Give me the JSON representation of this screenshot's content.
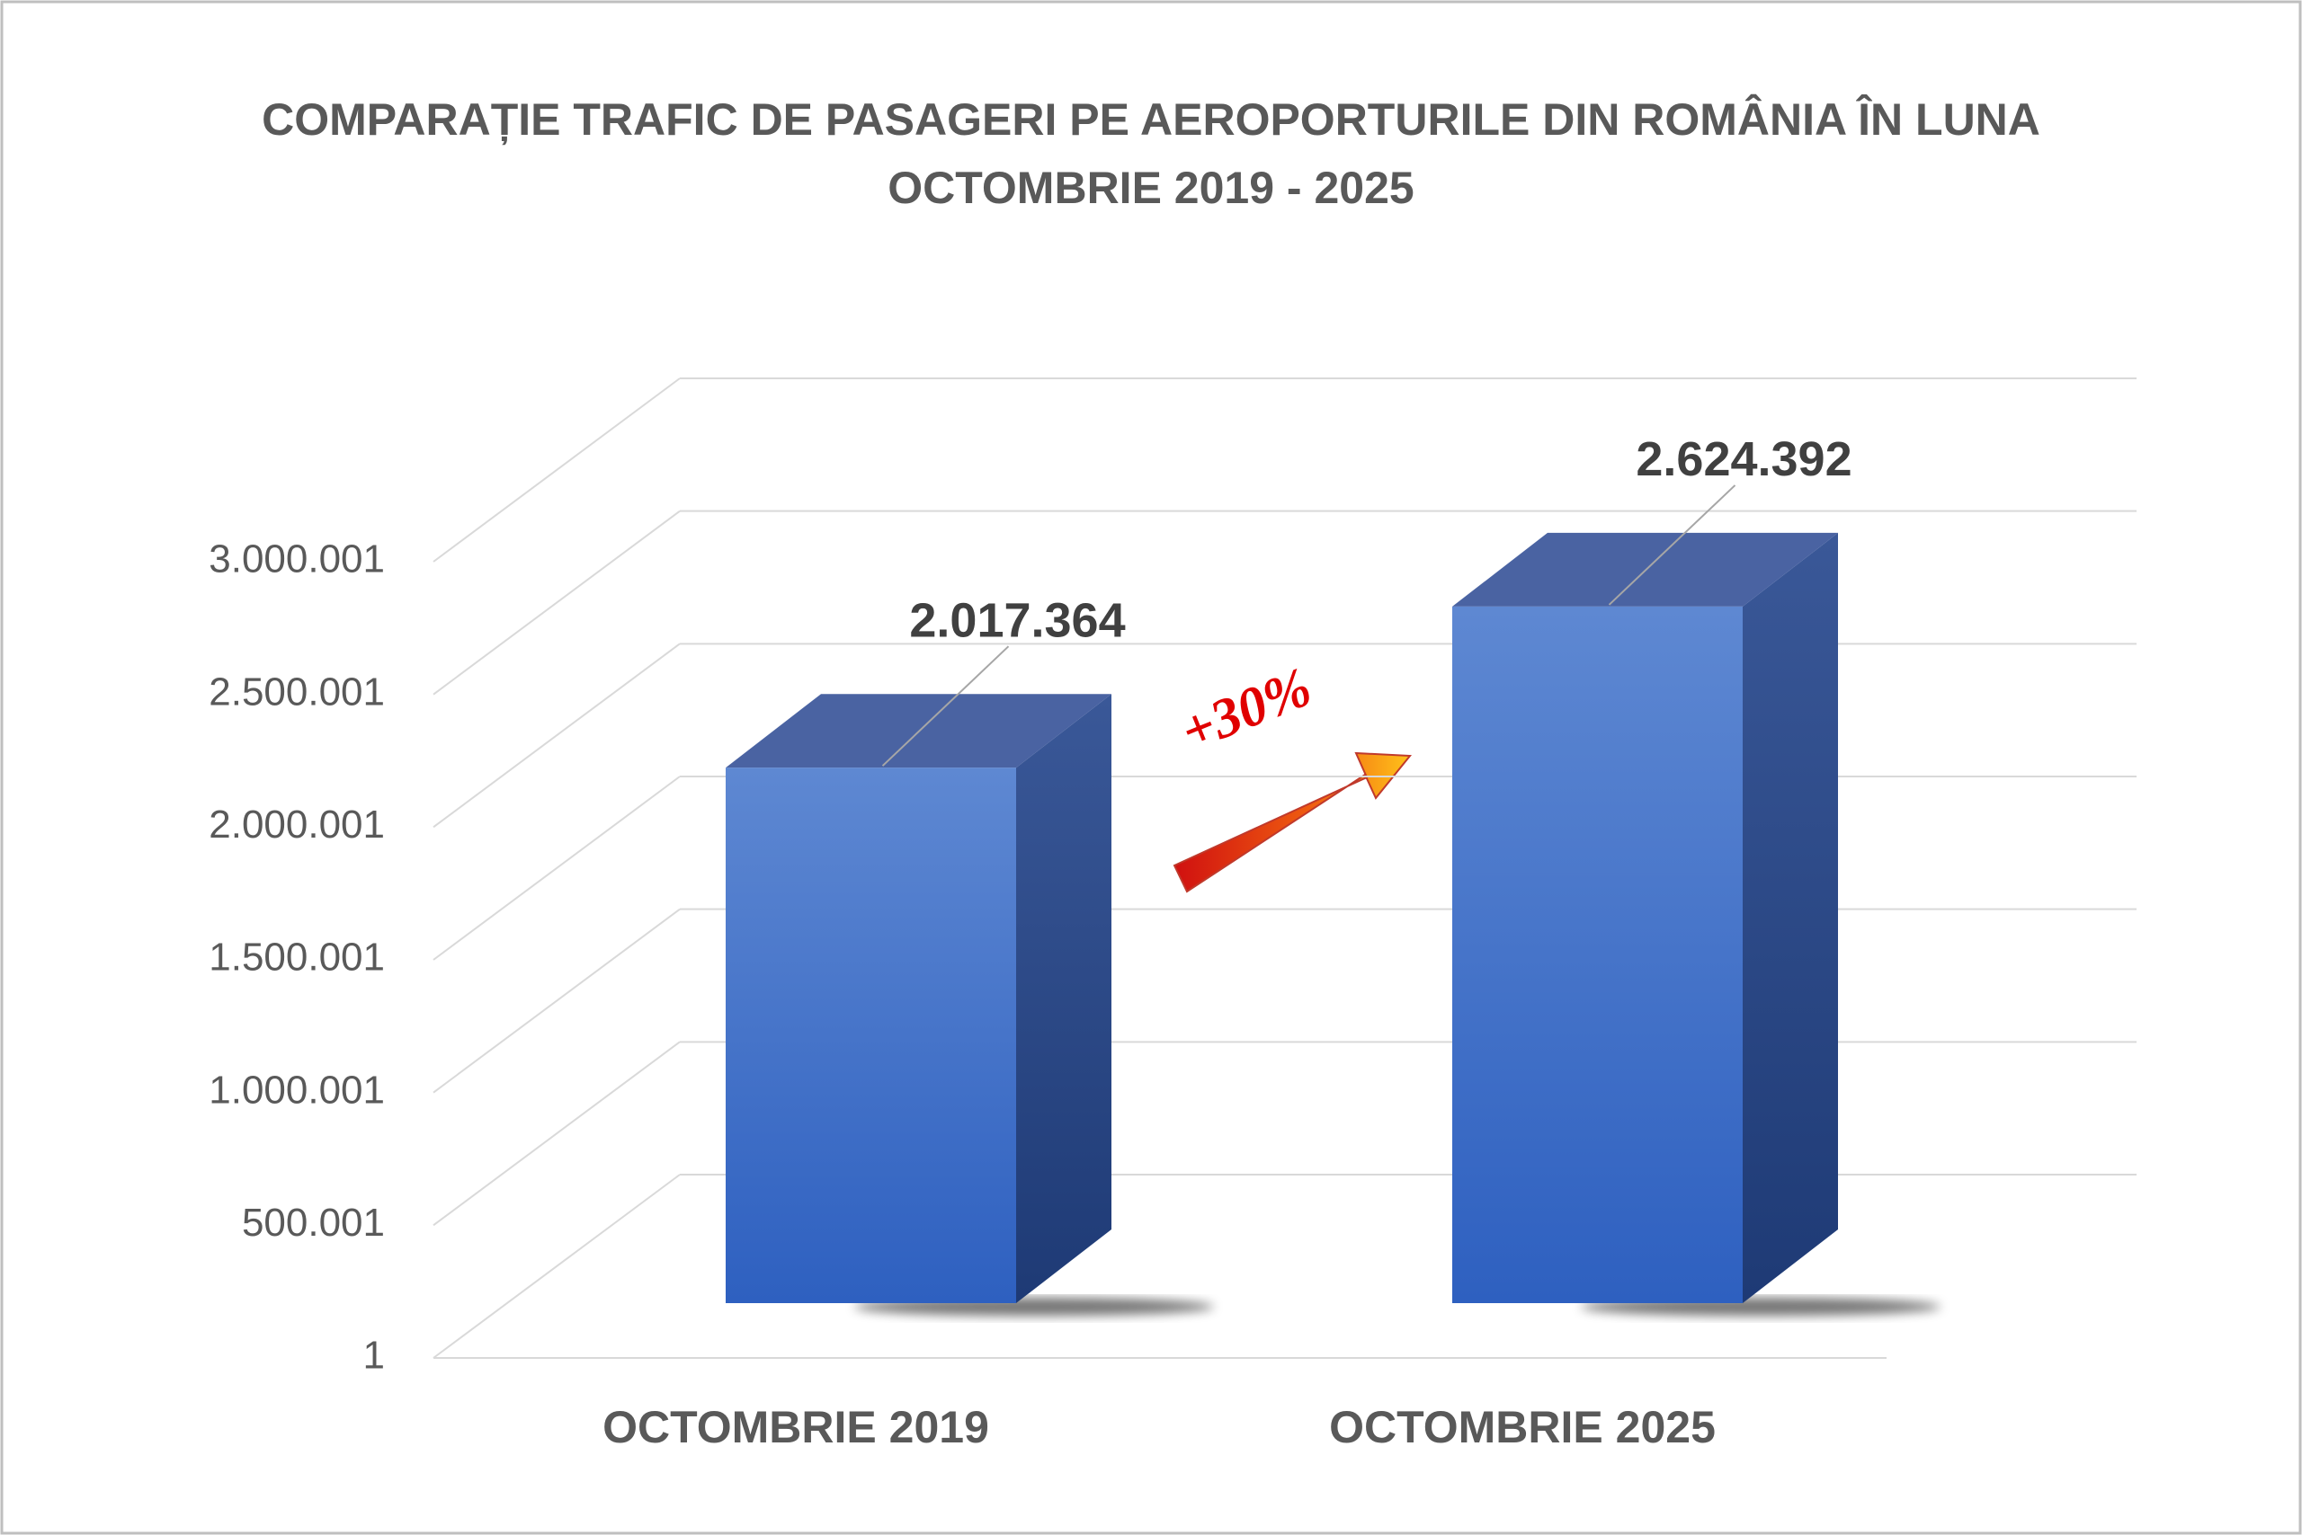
{
  "chart_data": {
    "type": "bar3d",
    "title": "COMPARAȚIE TRAFIC DE PASAGERI PE AEROPORTURILE DIN ROMÂNIA ÎN LUNA OCTOMBRIE 2019 - 2025",
    "categories": [
      "OCTOMBRIE 2019",
      "OCTOMBRIE 2025"
    ],
    "values": [
      2017364,
      2624392
    ],
    "value_labels": [
      "2.017.364",
      "2.624.392"
    ],
    "color": "#3a6fcf",
    "ylim": [
      1,
      3000001
    ],
    "yticks": [
      1,
      {
        "value": 500001,
        "label": "500.001"
      },
      {
        "value": 1000001,
        "label": "1.000.001"
      },
      {
        "value": 1500001,
        "label": "1.500.001"
      },
      {
        "value": 2000001,
        "label": "2.000.001"
      },
      {
        "value": 2500001,
        "label": "2.500.001"
      },
      {
        "value": 3000001,
        "label": "3.000.001"
      }
    ],
    "grid": true,
    "annotation": "+30%"
  }
}
